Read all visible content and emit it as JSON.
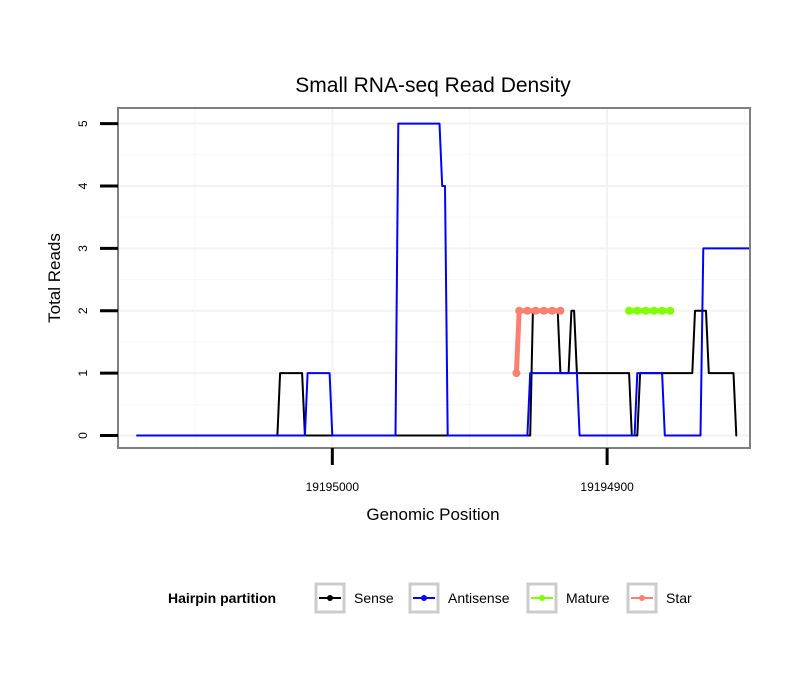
{
  "chart_data": {
    "type": "line",
    "title": "Small RNA-seq Read Density",
    "xlabel": "Genomic Position",
    "ylabel": "Total Reads",
    "x_reversed": true,
    "xlim": [
      19195078,
      19194848
    ],
    "ylim": [
      -0.2,
      5.25
    ],
    "x_ticks": [
      {
        "value": 19195000,
        "label": "19195000"
      },
      {
        "value": 19194900,
        "label": "19194900"
      }
    ],
    "y_ticks": [
      {
        "value": 0,
        "label": "0"
      },
      {
        "value": 1,
        "label": "1"
      },
      {
        "value": 2,
        "label": "2"
      },
      {
        "value": 3,
        "label": "3"
      },
      {
        "value": 4,
        "label": "4"
      },
      {
        "value": 5,
        "label": "5"
      }
    ],
    "grid": true,
    "legend": {
      "title": "Hairpin partition",
      "position": "bottom",
      "entries": [
        {
          "name": "Sense",
          "color": "#000000"
        },
        {
          "name": "Antisense",
          "color": "#0000ff"
        },
        {
          "name": "Mature",
          "color": "#7fff00"
        },
        {
          "name": "Star",
          "color": "#fa8072"
        }
      ]
    },
    "series": [
      {
        "name": "Sense",
        "color": "#000000",
        "x": [
          19195071,
          19195020,
          19195019,
          19195011,
          19195010,
          19194928,
          19194927,
          19194918,
          19194917,
          19194914,
          19194913,
          19194912,
          19194911,
          19194892,
          19194891,
          19194889,
          19194888,
          19194869,
          19194868,
          19194864,
          19194863,
          19194854,
          19194853
        ],
        "y": [
          0,
          0,
          1,
          1,
          0,
          0,
          2,
          2,
          1,
          1,
          2,
          2,
          1,
          1,
          0,
          0,
          1,
          1,
          2,
          2,
          1,
          1,
          0
        ]
      },
      {
        "name": "Antisense",
        "color": "#0000ff",
        "x": [
          19195071,
          19195010,
          19195009,
          19195001,
          19195000,
          19194977,
          19194976,
          19194961,
          19194960,
          19194959,
          19194958,
          19194929,
          19194928,
          19194911,
          19194910,
          19194890,
          19194889,
          19194880,
          19194879,
          19194866,
          19194865,
          19194848
        ],
        "y": [
          0,
          0,
          1,
          1,
          0,
          0,
          5,
          5,
          4,
          4,
          0,
          0,
          1,
          1,
          0,
          0,
          1,
          1,
          0,
          0,
          3,
          3
        ]
      },
      {
        "name": "Mature",
        "color": "#7fff00",
        "x": [
          19194892,
          19194889,
          19194886,
          19194883,
          19194880,
          19194877
        ],
        "y": [
          2,
          2,
          2,
          2,
          2,
          2
        ]
      },
      {
        "name": "Star",
        "color": "#fa8072",
        "x": [
          19194933,
          19194932,
          19194929,
          19194926,
          19194923,
          19194920,
          19194917
        ],
        "y": [
          1,
          2,
          2,
          2,
          2,
          2,
          2
        ]
      }
    ]
  }
}
